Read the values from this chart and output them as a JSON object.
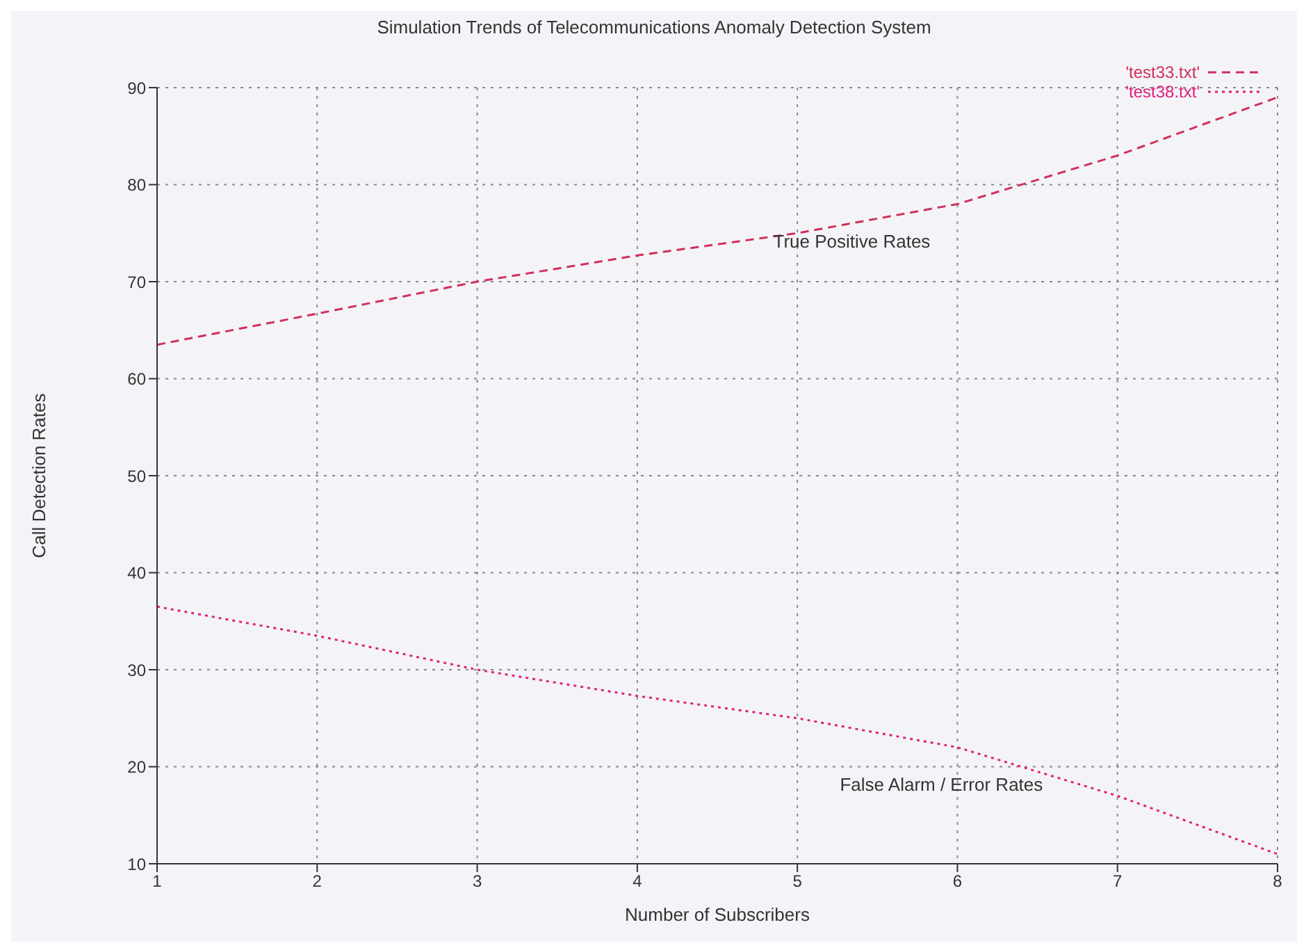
{
  "chart_data": {
    "type": "line",
    "title": "Simulation Trends of Telecommunications Anomaly Detection System",
    "xlabel": "Number of Subscribers",
    "ylabel": "Call Detection Rates",
    "x": [
      1,
      2,
      3,
      4,
      5,
      6,
      7,
      8
    ],
    "series": [
      {
        "name": "'test33.txt'",
        "color": "#d0305a",
        "line_style": "dashed",
        "values": [
          63.5,
          66.7,
          70,
          72.7,
          75,
          78,
          83,
          89
        ]
      },
      {
        "name": "'test38.txt'",
        "color": "#e0207a",
        "line_style": "dotted",
        "values": [
          36.5,
          33.5,
          30,
          27.3,
          25,
          22,
          17,
          11
        ]
      }
    ],
    "xlim": [
      1,
      8
    ],
    "xticks": [
      1,
      2,
      3,
      4,
      5,
      6,
      7,
      8
    ],
    "ylim": [
      10,
      90
    ],
    "yticks": [
      10,
      20,
      30,
      40,
      50,
      60,
      70,
      80,
      90
    ],
    "grid": true,
    "legend": "top right",
    "marker": "none",
    "annotations": [
      "True Positive Rates",
      "False Alarm / Error Rates"
    ]
  }
}
